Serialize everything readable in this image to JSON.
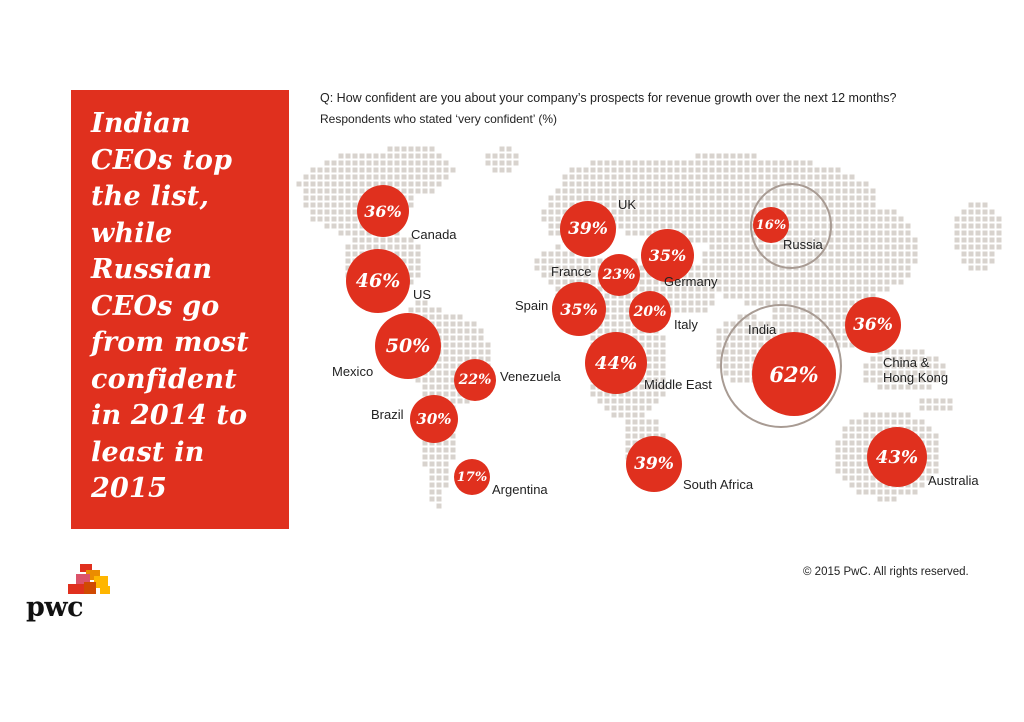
{
  "headline": "Indian\nCEOs top\nthe list,\nwhile\nRussian\nCEOs go\nfrom most\nconfident\nin 2014 to\nleast in\n2015",
  "question": "Q: How confident are you about your company’s prospects for revenue growth over the next 12 months?",
  "subquestion": "Respondents who stated ‘very confident’  (%)",
  "copyright": "© 2015 PwC. All rights reserved.",
  "logo_text": "pwc",
  "colors": {
    "accent": "#e0301e",
    "map_dots": "#d8d3ce",
    "ring": "#a89b93"
  },
  "countries": [
    {
      "id": "canada",
      "name": "Canada",
      "value": "36%"
    },
    {
      "id": "us",
      "name": "US",
      "value": "46%"
    },
    {
      "id": "mexico",
      "name": "Mexico",
      "value": "50%"
    },
    {
      "id": "venezuela",
      "name": "Venezuela",
      "value": "22%"
    },
    {
      "id": "brazil",
      "name": "Brazil",
      "value": "30%"
    },
    {
      "id": "argentina",
      "name": "Argentina",
      "value": "17%"
    },
    {
      "id": "uk",
      "name": "UK",
      "value": "39%"
    },
    {
      "id": "france",
      "name": "France",
      "value": "23%"
    },
    {
      "id": "germany",
      "name": "Germany",
      "value": "35%"
    },
    {
      "id": "spain",
      "name": "Spain",
      "value": "35%"
    },
    {
      "id": "italy",
      "name": "Italy",
      "value": "20%"
    },
    {
      "id": "middle-east",
      "name": "Middle East",
      "value": "44%"
    },
    {
      "id": "south-africa",
      "name": "South Africa",
      "value": "39%"
    },
    {
      "id": "russia",
      "name": "Russia",
      "value": "16%"
    },
    {
      "id": "india",
      "name": "India",
      "value": "62%"
    },
    {
      "id": "china",
      "name": "China &\nHong Kong",
      "value": "36%"
    },
    {
      "id": "australia",
      "name": "Australia",
      "value": "43%"
    }
  ]
}
